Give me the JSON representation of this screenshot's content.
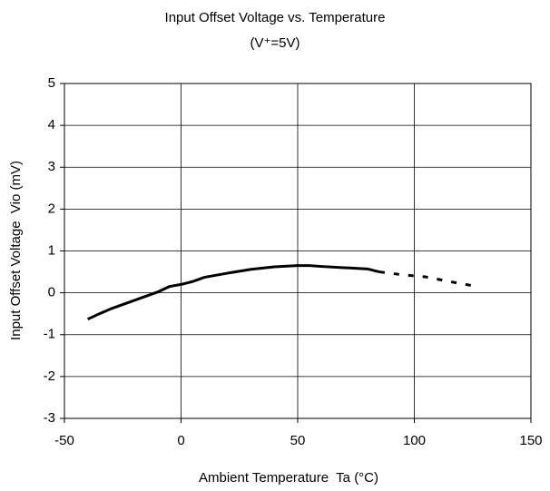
{
  "chart_data": {
    "type": "line",
    "title": "Input Offset Voltage vs. Temperature",
    "subtitle": "(V⁺=5V)",
    "xlabel": "Ambient Temperature  Ta (°C)",
    "ylabel": "Input Offset Voltage  Vio (mV)",
    "series": [
      {
        "color": "#000000",
        "dash": false,
        "x": [
          -40,
          -35,
          -30,
          -20,
          -10,
          -5,
          0,
          5,
          10,
          20,
          30,
          40,
          50,
          55,
          60,
          70,
          80,
          85
        ],
        "values": [
          -0.63,
          -0.5,
          -0.38,
          -0.18,
          0.02,
          0.15,
          0.2,
          0.27,
          0.37,
          0.47,
          0.56,
          0.62,
          0.65,
          0.65,
          0.63,
          0.6,
          0.57,
          0.5
        ]
      },
      {
        "color": "#000000",
        "dash": true,
        "x": [
          85,
          95,
          105,
          115,
          125
        ],
        "values": [
          0.5,
          0.43,
          0.38,
          0.27,
          0.17
        ]
      }
    ],
    "xlim": [
      -50,
      150
    ],
    "xticks": [
      -50,
      0,
      50,
      100,
      150
    ],
    "ylim": [
      -3,
      5
    ],
    "yticks": [
      -3,
      -2,
      -1,
      0,
      1,
      2,
      3,
      4,
      5
    ],
    "grid": true
  }
}
